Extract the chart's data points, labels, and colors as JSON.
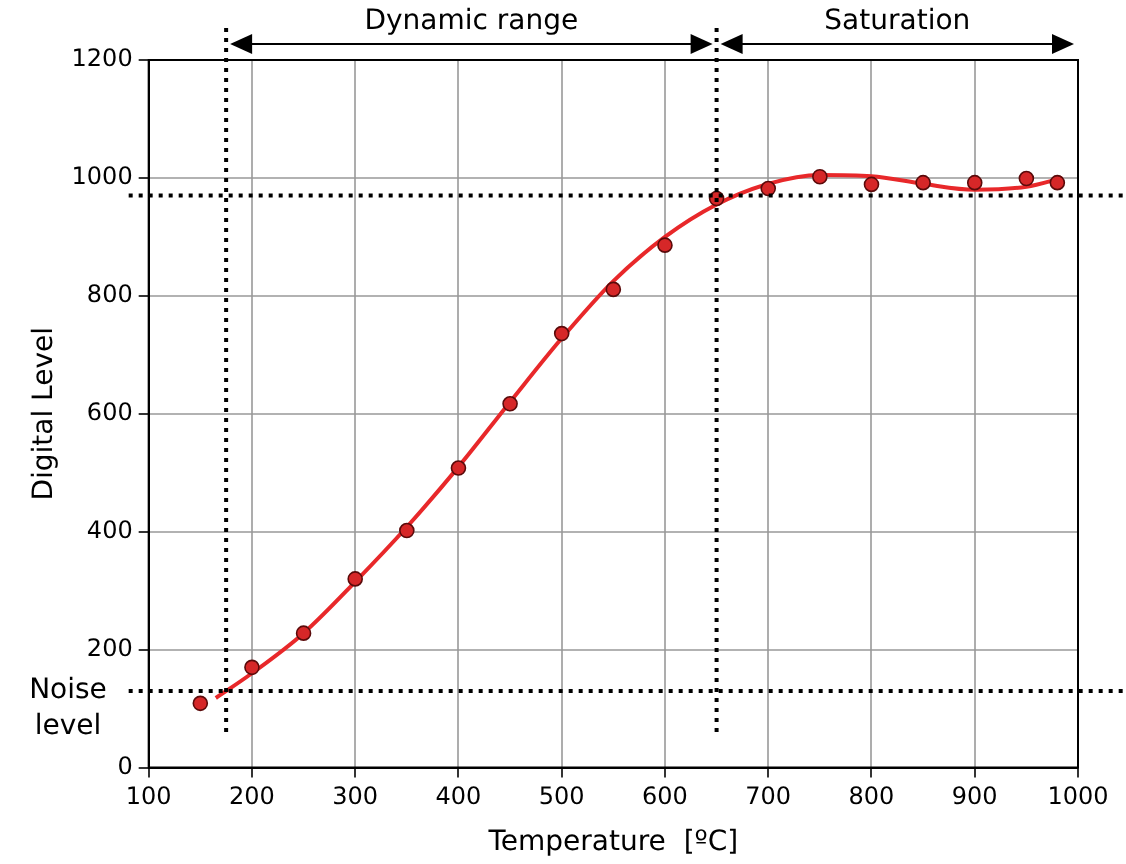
{
  "chart_data": {
    "type": "scatter",
    "xlabel": "Temperature  [ºC]",
    "ylabel": "Digital Level",
    "xlim": [
      100,
      1000
    ],
    "xticks": [
      100,
      200,
      300,
      400,
      500,
      600,
      700,
      800,
      900,
      1000
    ],
    "ylim": [
      0,
      1200
    ],
    "yticks": [
      0,
      200,
      400,
      600,
      800,
      1000,
      1200
    ],
    "grid": true,
    "legend": false,
    "marker": "circle",
    "series": [
      {
        "color": "#d62728",
        "x": [
          150,
          200,
          250,
          300,
          350,
          400,
          450,
          500,
          550,
          600,
          650,
          700,
          750,
          800,
          850,
          900,
          950,
          980
        ],
        "values": [
          109,
          170,
          228,
          320,
          402,
          508,
          617,
          736,
          811,
          886,
          965,
          982,
          1002,
          989,
          992,
          992,
          999,
          992
        ]
      },
      {
        "type": "line",
        "color": "#e8282a",
        "marker": "none",
        "x": [
          165,
          200,
          250,
          300,
          350,
          400,
          450,
          500,
          550,
          600,
          650,
          700,
          750,
          800,
          850,
          900,
          950,
          985
        ],
        "values": [
          118,
          160,
          228,
          315,
          408,
          510,
          620,
          728,
          825,
          900,
          955,
          990,
          1005,
          1003,
          990,
          980,
          985,
          1000
        ]
      }
    ],
    "ref_lines": [
      {
        "axis": "x",
        "value": 175,
        "line_style": "dotted",
        "color": "#000000"
      },
      {
        "axis": "x",
        "value": 650,
        "line_style": "dotted",
        "color": "#000000"
      },
      {
        "axis": "y",
        "value": 970,
        "line_style": "dotted",
        "color": "#000000"
      },
      {
        "axis": "y",
        "value": 130,
        "label": "Noise level",
        "line_style": "dotted",
        "color": "#000000"
      }
    ],
    "annotations": [
      "Dynamic range",
      "Saturation"
    ]
  }
}
